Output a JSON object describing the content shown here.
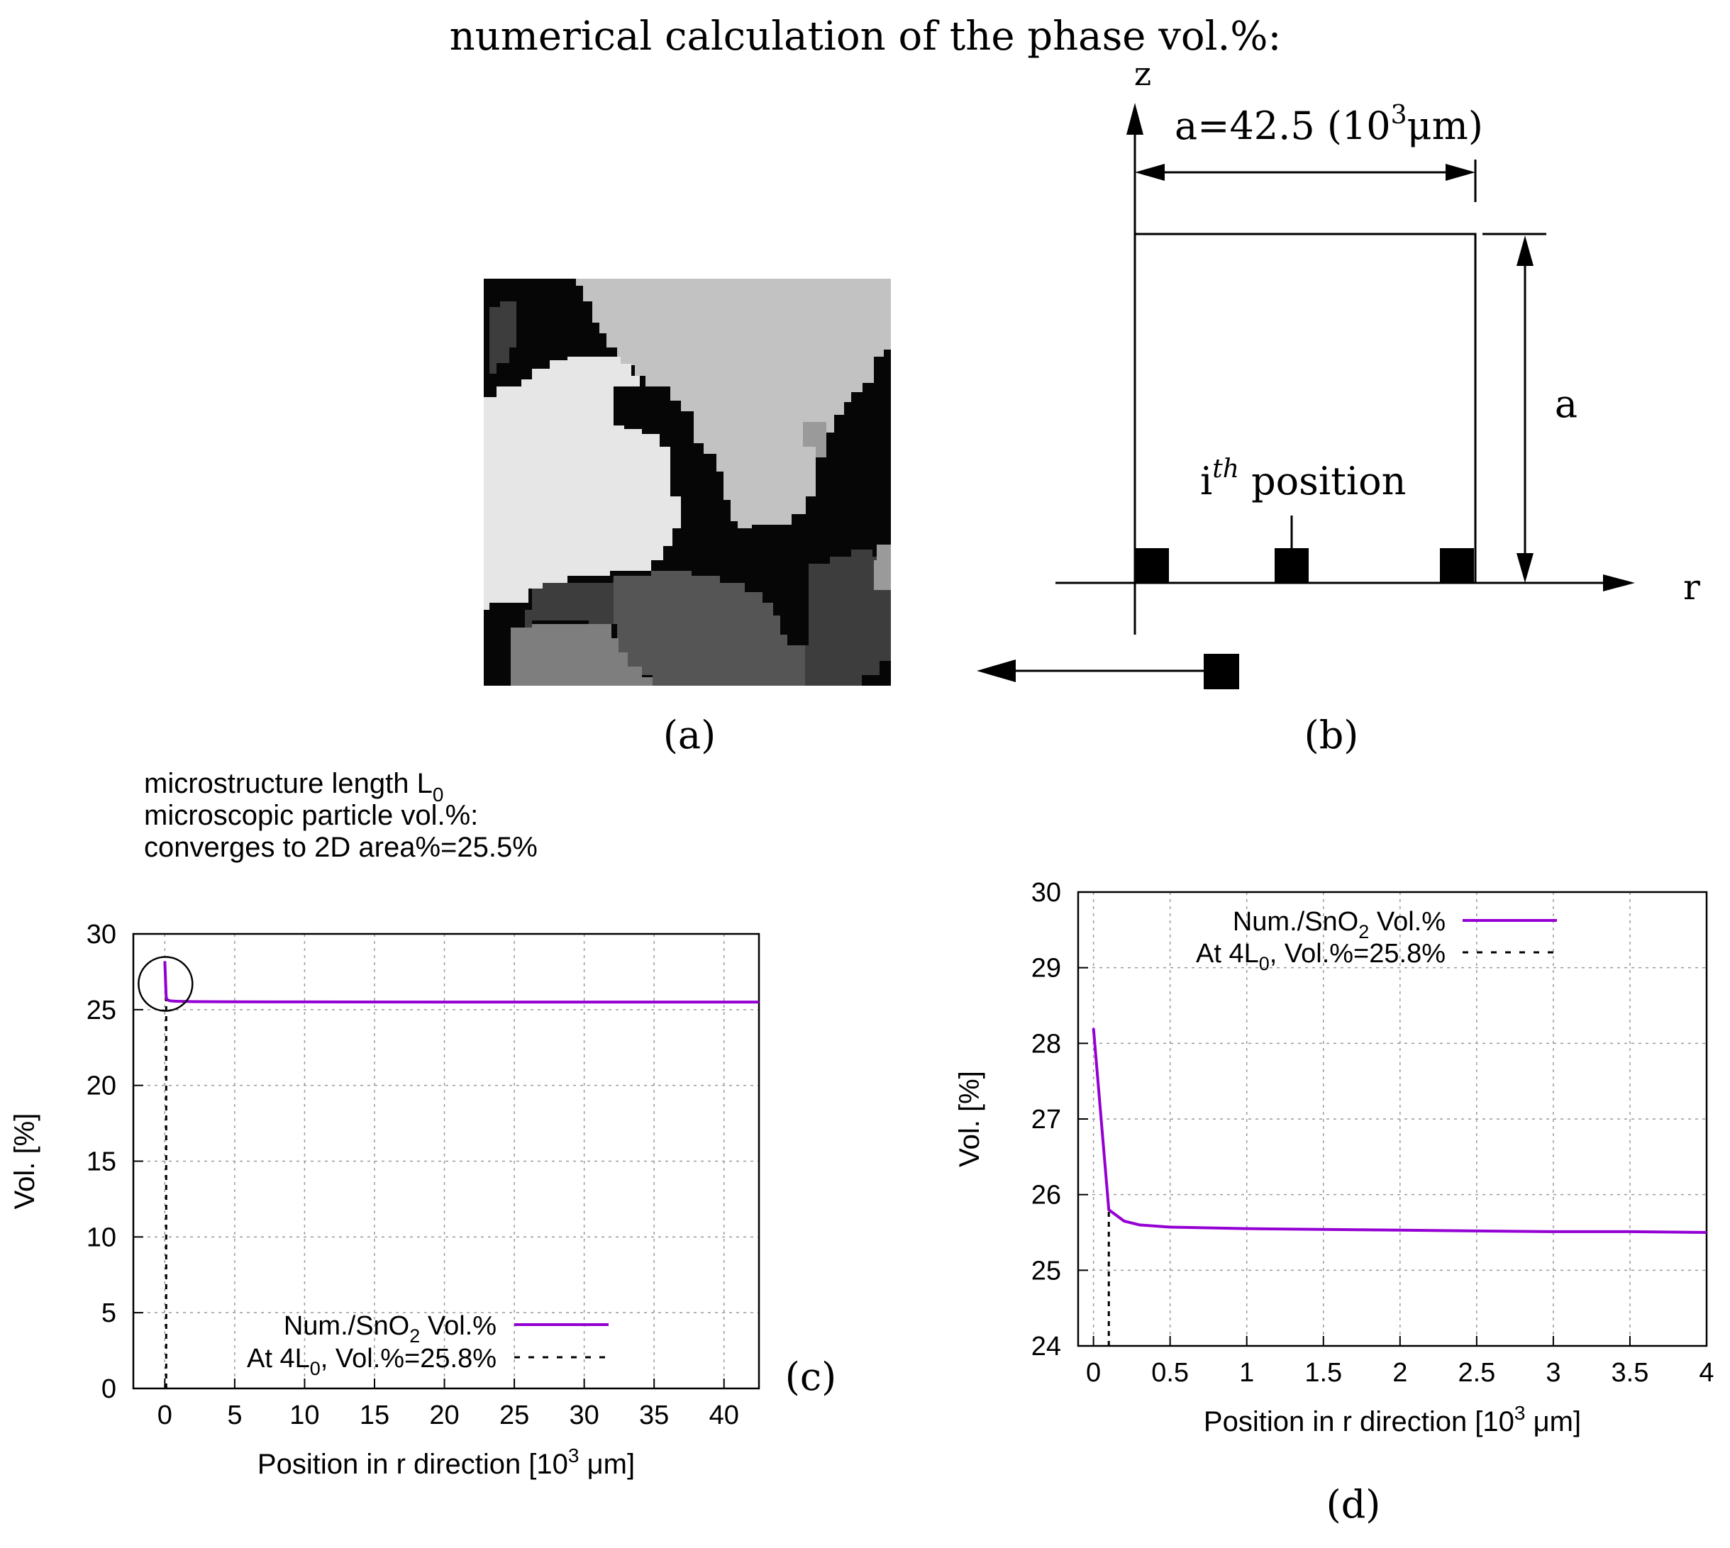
{
  "figure": {
    "title": "numerical calculation of the phase vol.%:",
    "panel_labels": {
      "a": "(a)",
      "b": "(b)",
      "c": "(c)",
      "d": "(d)"
    }
  },
  "panel_a": {
    "palette": [
      "#060606",
      "#3d3d3d",
      "#555555",
      "#6a6a6a",
      "#7e7e7e",
      "#9a9a9a",
      "#c2c2c2",
      "#e6e6e6"
    ]
  },
  "panel_b": {
    "axis_z": "z",
    "axis_r": "r",
    "a_label_prefix": "a=42.5 (10",
    "a_label_sup": "3",
    "a_label_suffix": "μm)",
    "height_label": "a",
    "ith_base": "i",
    "ith_sup": "th",
    "ith_rest": " position"
  },
  "notes": {
    "line1_text": "microstructure length L",
    "line1_sub": "0",
    "line2": "microscopic particle vol.%:",
    "line3": "converges to 2D area%=25.5%"
  },
  "chart_data": [
    {
      "id": "c",
      "type": "line",
      "title": "",
      "xlabel_main": "Position in r direction [10",
      "xlabel_sup": "3",
      "xlabel_end": " μm]",
      "ylabel": "Vol. [%]",
      "xlim": [
        -2.25,
        42.5
      ],
      "ylim": [
        0,
        30
      ],
      "xticks": [
        0,
        5,
        10,
        15,
        20,
        25,
        30,
        35,
        40
      ],
      "yticks": [
        0,
        5,
        10,
        15,
        20,
        25,
        30
      ],
      "grid": true,
      "legend_position": "bottom-right",
      "series": [
        {
          "name_main": "Num./SnO",
          "name_sub": "2",
          "name_end": " Vol.%",
          "color": "#9400d3",
          "x": [
            0.0,
            0.1,
            0.2,
            0.3,
            0.5,
            1.0,
            2.0,
            5.0,
            10,
            20,
            30,
            42.5
          ],
          "y": [
            28.2,
            25.8,
            25.65,
            25.6,
            25.57,
            25.55,
            25.53,
            25.52,
            25.51,
            25.5,
            25.5,
            25.5
          ]
        }
      ],
      "reference": {
        "label_main": "At 4L",
        "label_sub": "0",
        "label_end": ", Vol.%=25.8%",
        "x": 0.1,
        "y": 25.8,
        "style": "dashed"
      },
      "annotation": "circle around initial drop"
    },
    {
      "id": "d",
      "type": "line",
      "title": "",
      "xlabel_main": "Position in r direction [10",
      "xlabel_sup": "3",
      "xlabel_end": " μm]",
      "ylabel": "Vol. [%]",
      "xlim": [
        -0.1,
        4.0
      ],
      "ylim": [
        24,
        30
      ],
      "xticks": [
        0,
        0.5,
        1,
        1.5,
        2,
        2.5,
        3,
        3.5,
        4
      ],
      "yticks": [
        24,
        25,
        26,
        27,
        28,
        29,
        30
      ],
      "grid": true,
      "legend_position": "top-right",
      "series": [
        {
          "name_main": "Num./SnO",
          "name_sub": "2",
          "name_end": " Vol.%",
          "color": "#9400d3",
          "x": [
            0.0,
            0.1,
            0.2,
            0.3,
            0.5,
            1.0,
            1.5,
            2.0,
            2.5,
            3.0,
            3.5,
            4.0
          ],
          "y": [
            28.2,
            25.8,
            25.65,
            25.6,
            25.57,
            25.55,
            25.54,
            25.53,
            25.52,
            25.51,
            25.51,
            25.5
          ]
        }
      ],
      "reference": {
        "label_main": "At 4L",
        "label_sub": "0",
        "label_end": ", Vol.%=25.8%",
        "x": 0.1,
        "y": 25.8,
        "style": "dashed"
      }
    }
  ]
}
